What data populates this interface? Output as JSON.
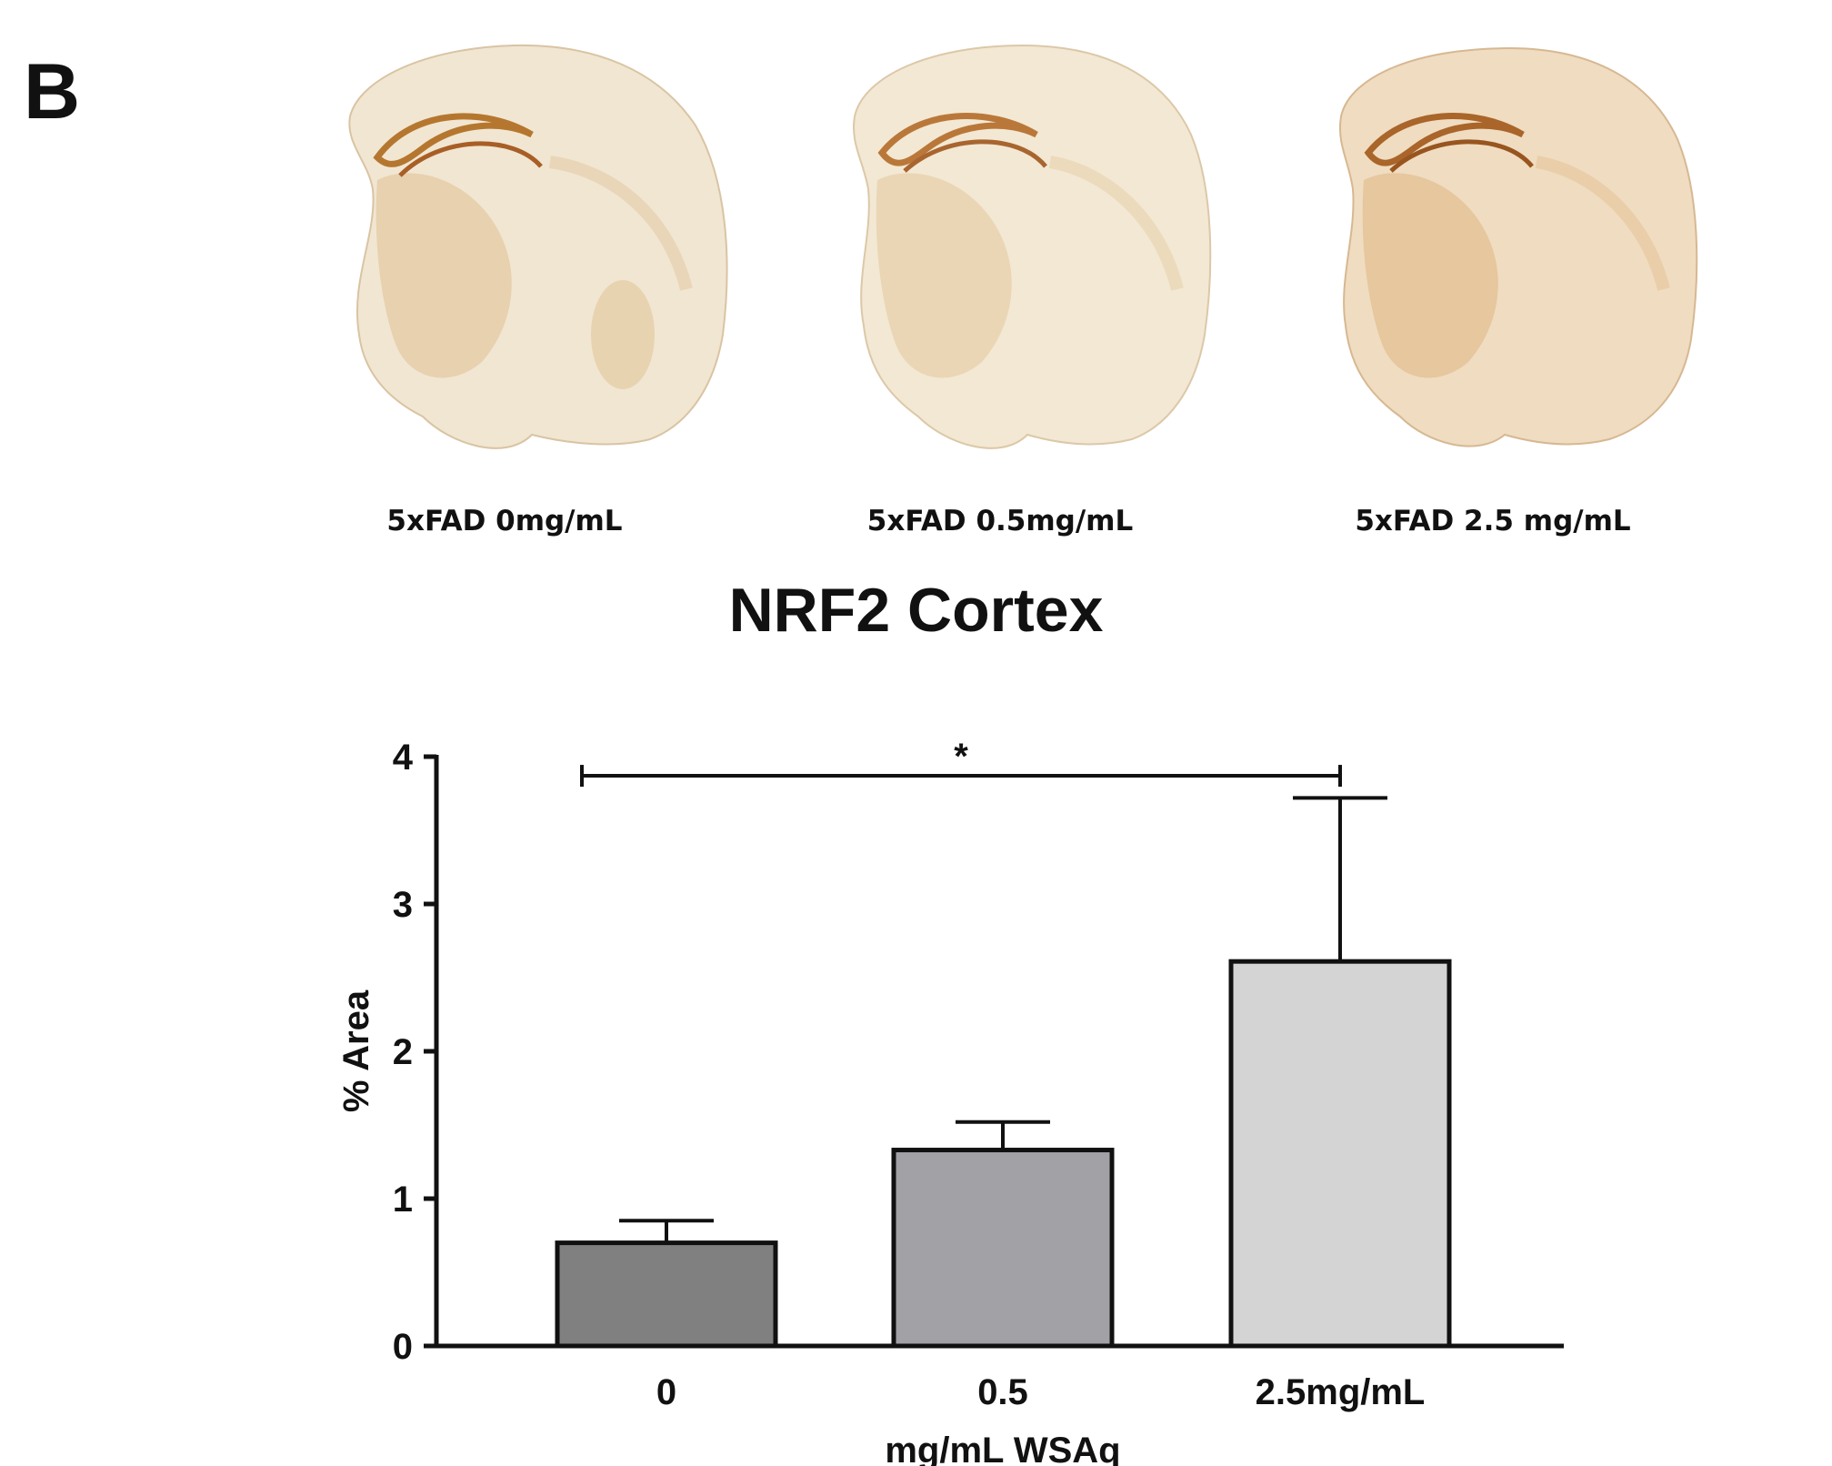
{
  "panel_letter": "B",
  "images": [
    {
      "caption": "5xFAD 0mg/mL",
      "tint": "#f1e6d2",
      "stain": "#b5772f"
    },
    {
      "caption": "5xFAD 0.5mg/mL",
      "tint": "#f3e8d3",
      "stain": "#b9783a"
    },
    {
      "caption": "5xFAD 2.5 mg/mL",
      "tint": "#f0dcc0",
      "stain": "#a9652a"
    }
  ],
  "chart_data": {
    "type": "bar",
    "title": "NRF2 Cortex",
    "xlabel": "mg/mL WSAq",
    "ylabel": "% Area",
    "categories": [
      "0",
      "0.5",
      "2.5mg/mL"
    ],
    "values": [
      0.7,
      1.33,
      2.61
    ],
    "errors": [
      0.15,
      0.19,
      1.11
    ],
    "bar_colors": [
      "#808080",
      "#a2a2a6",
      "#d4d4d4"
    ],
    "ylim": [
      0,
      4
    ],
    "yticks": [
      "0",
      "1",
      "2",
      "3",
      "4"
    ],
    "significance": {
      "from": 0,
      "to": 2,
      "y": 3.87,
      "label": "*"
    },
    "grid": false,
    "legend": "none"
  }
}
